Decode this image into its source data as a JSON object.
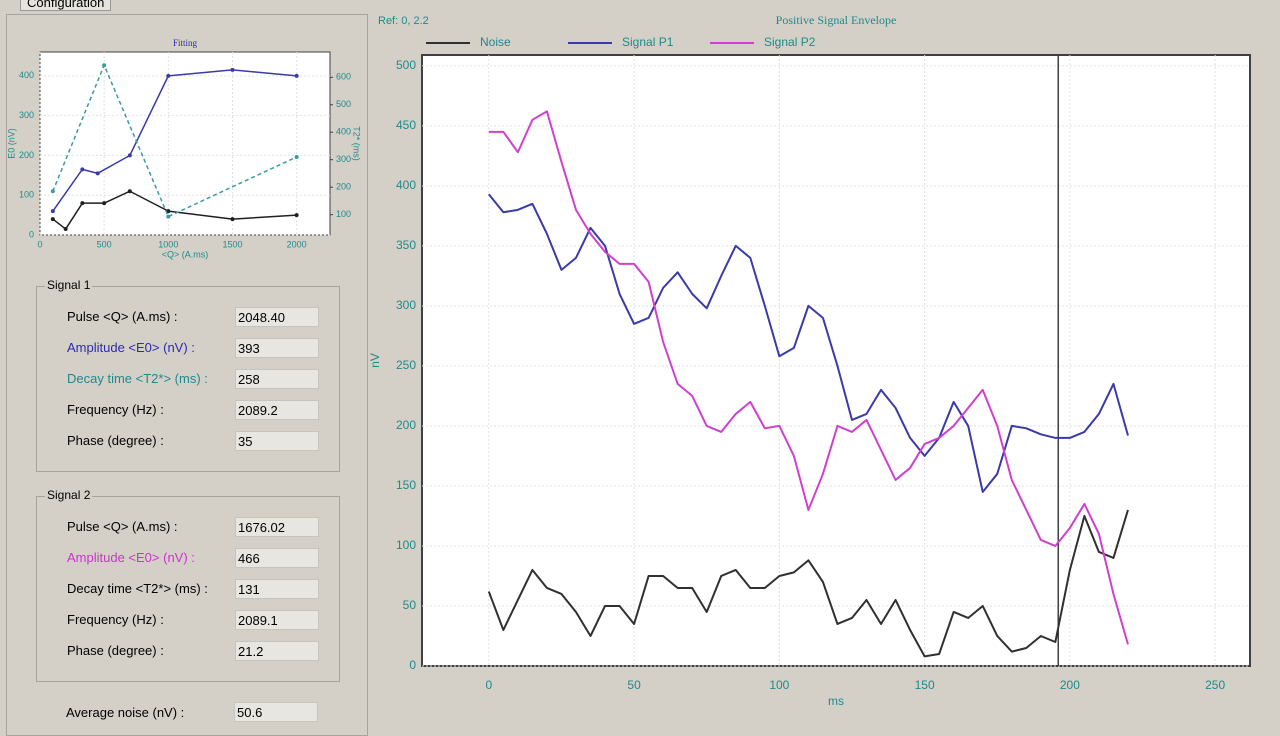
{
  "tabs": [
    "Configuration"
  ],
  "signal1": {
    "title": "Signal 1",
    "fields": [
      {
        "label": "Pulse  <Q>  (A.ms) :",
        "value": "2048.40",
        "color": "#000000"
      },
      {
        "label": "Amplitude  <E0>  (nV) :",
        "value": "393",
        "color": "#2b2bb0"
      },
      {
        "label": "Decay time  <T2*>  (ms) :",
        "value": "258",
        "color": "#1f8a8a"
      },
      {
        "label": "Frequency  (Hz) :",
        "value": "2089.2",
        "color": "#000000"
      },
      {
        "label": "Phase  (degree) :",
        "value": "35",
        "color": "#000000"
      }
    ]
  },
  "signal2": {
    "title": "Signal 2",
    "fields": [
      {
        "label": "Pulse  <Q>  (A.ms) :",
        "value": "1676.02",
        "color": "#000000"
      },
      {
        "label": "Amplitude  <E0>  (nV) :",
        "value": "466",
        "color": "#d030d0"
      },
      {
        "label": "Decay time  <T2*>  (ms) :",
        "value": "131",
        "color": "#000000"
      },
      {
        "label": "Frequency  (Hz) :",
        "value": "2089.1",
        "color": "#000000"
      },
      {
        "label": "Phase  (degree) :",
        "value": "21.2",
        "color": "#000000"
      }
    ]
  },
  "noise": {
    "label": "Average noise  (nV) :",
    "value": "50.6"
  },
  "chart_data": [
    {
      "type": "line",
      "title": "Fitting",
      "x_label": "<Q> (A.ms)",
      "y_label": "E0 (nV)",
      "y2_label": "T2* (ms)",
      "xlim": [
        0,
        2260
      ],
      "xticks": [
        0,
        500,
        1000,
        1500,
        2000
      ],
      "ylim": [
        0,
        460
      ],
      "yticks": [
        0,
        100,
        200,
        300,
        400
      ],
      "y2lim": [
        26,
        692
      ],
      "y2ticks": [
        100,
        200,
        300,
        400,
        500,
        600
      ],
      "grid": true,
      "series": [
        {
          "color": "#3a3aa8",
          "x": [
            100,
            330,
            450,
            700,
            1000,
            1500,
            2000
          ],
          "values": [
            60,
            165,
            155,
            200,
            400,
            415,
            400
          ]
        },
        {
          "color": "#202020",
          "x": [
            100,
            200,
            330,
            500,
            700,
            1000,
            1500,
            2000
          ],
          "values": [
            40,
            15,
            80,
            80,
            110,
            60,
            40,
            50
          ]
        },
        {
          "color": "#3a9aa0",
          "axis": "y2",
          "dashed": true,
          "x": [
            100,
            500,
            1000,
            2000
          ],
          "values": [
            185,
            644,
            93,
            310
          ]
        }
      ]
    },
    {
      "type": "line",
      "title": "Positive Signal Envelope",
      "note": "Ref: 0, 2.2",
      "x_label": "ms",
      "y_label": "nV",
      "xlim": [
        -23,
        262
      ],
      "xticks": [
        0,
        50,
        100,
        150,
        200,
        250
      ],
      "ylim": [
        0,
        509
      ],
      "yticks": [
        0,
        50,
        100,
        150,
        200,
        250,
        300,
        350,
        400,
        450,
        500
      ],
      "grid": true,
      "cursor_x": 196,
      "x": [
        0,
        5,
        10,
        15,
        20,
        25,
        30,
        35,
        40,
        45,
        50,
        55,
        60,
        65,
        70,
        75,
        80,
        85,
        90,
        95,
        100,
        105,
        110,
        115,
        120,
        125,
        130,
        135,
        140,
        145,
        150,
        155,
        160,
        165,
        170,
        175,
        180,
        185,
        190,
        195,
        200,
        205,
        210,
        215,
        220
      ],
      "series": [
        {
          "name": "Noise",
          "color": "#303030",
          "values": [
            62,
            30,
            55,
            80,
            65,
            60,
            45,
            25,
            50,
            50,
            35,
            75,
            75,
            65,
            65,
            45,
            75,
            80,
            65,
            65,
            75,
            78,
            88,
            70,
            35,
            40,
            55,
            35,
            55,
            30,
            8,
            10,
            45,
            40,
            50,
            25,
            12,
            15,
            25,
            20,
            80,
            125,
            95,
            90,
            130
          ]
        },
        {
          "name": "Signal P1",
          "color": "#3a3aa8",
          "values": [
            393,
            378,
            380,
            385,
            360,
            330,
            340,
            365,
            350,
            310,
            285,
            290,
            315,
            328,
            310,
            298,
            325,
            350,
            340,
            300,
            258,
            265,
            300,
            290,
            250,
            205,
            210,
            230,
            215,
            190,
            175,
            190,
            220,
            200,
            145,
            160,
            200,
            198,
            193,
            190,
            190,
            195,
            210,
            235,
            192
          ]
        },
        {
          "name": "Signal P2",
          "color": "#d040d0",
          "values": [
            445,
            445,
            428,
            455,
            462,
            420,
            380,
            360,
            345,
            335,
            335,
            320,
            270,
            235,
            225,
            200,
            195,
            210,
            220,
            198,
            200,
            175,
            130,
            160,
            200,
            195,
            205,
            180,
            155,
            165,
            185,
            190,
            200,
            215,
            230,
            200,
            155,
            130,
            105,
            100,
            115,
            135,
            110,
            60,
            18
          ]
        }
      ]
    }
  ]
}
